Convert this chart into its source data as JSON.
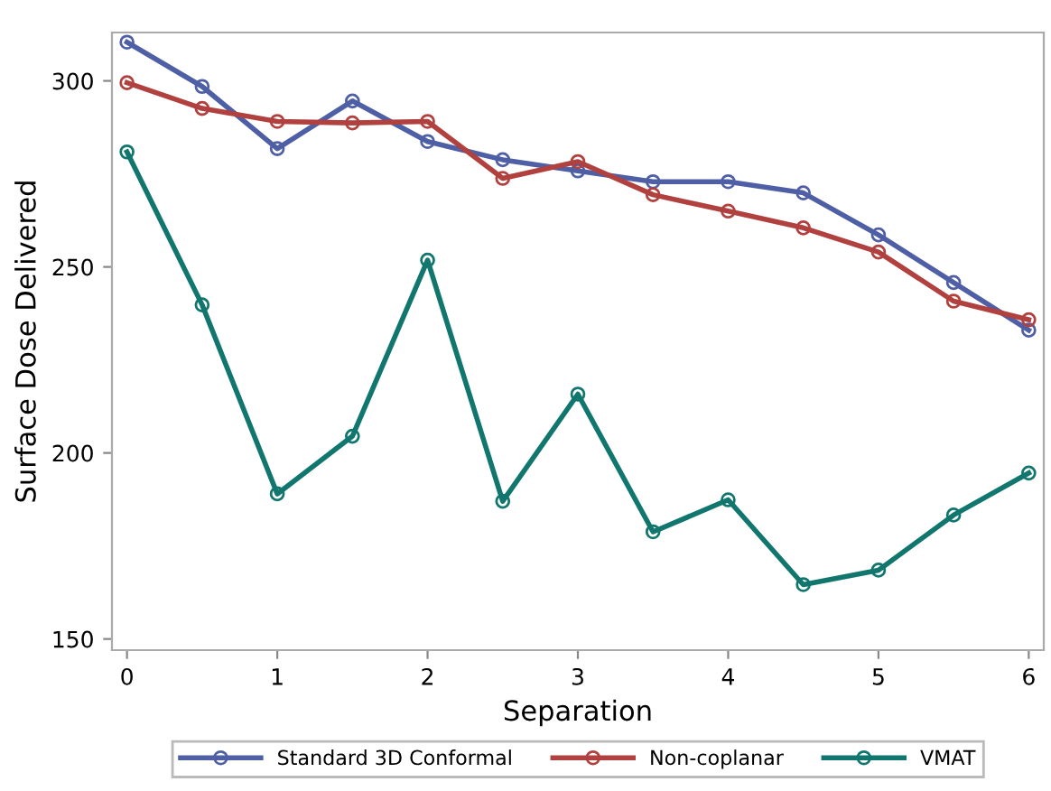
{
  "chart_data": {
    "type": "line",
    "xlabel": "Separation",
    "ylabel": "Surface Dose Delivered",
    "x": [
      0,
      0.5,
      1,
      1.5,
      2,
      2.5,
      3,
      3.5,
      4,
      4.5,
      5,
      5.5,
      6
    ],
    "series": [
      {
        "name": "Standard 3D Conformal",
        "color": "#4f5fa6",
        "values": [
          310.4,
          298.5,
          281.8,
          294.6,
          283.7,
          278.8,
          275.8,
          272.9,
          272.9,
          269.9,
          258.6,
          245.8,
          233
        ]
      },
      {
        "name": "Non-coplanar",
        "color": "#b0413e",
        "values": [
          299.5,
          292.6,
          289.1,
          288.7,
          289.1,
          273.8,
          278.3,
          269.4,
          265,
          260.5,
          254,
          240.8,
          235.8
        ]
      },
      {
        "name": "VMAT",
        "color": "#11776e",
        "values": [
          280.9,
          239.8,
          189,
          204.5,
          251.8,
          187,
          215.8,
          178.8,
          187.4,
          164.6,
          168.5,
          183.3,
          194.6
        ]
      }
    ],
    "xlim": [
      -0.1,
      6.1
    ],
    "xticks": [
      0,
      1,
      2,
      3,
      4,
      5,
      6
    ],
    "ylim": [
      147,
      313
    ],
    "yticks": [
      150,
      200,
      250,
      300
    ],
    "grid": false,
    "legend": "bottom",
    "marker": "circle",
    "line_style": "solid"
  }
}
